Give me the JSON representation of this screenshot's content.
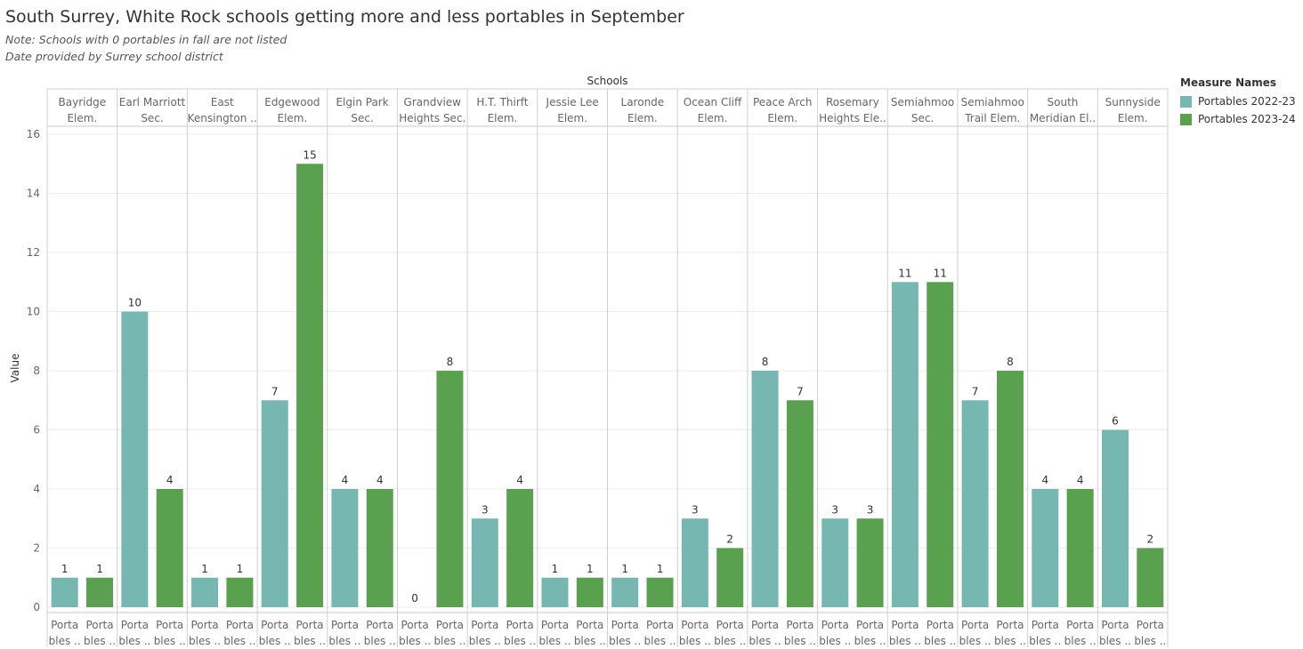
{
  "header": {
    "title": "South Surrey, White Rock schools getting more and less portables in September",
    "notes": [
      "Note: Schools with 0 portables in fall are not listed",
      "Date provided by Surrey school district"
    ]
  },
  "legend": {
    "title": "Measure Names",
    "items": [
      {
        "label": "Portables 2022-23",
        "color": "#76b7b2"
      },
      {
        "label": "Portables 2023-24",
        "color": "#59a14f"
      }
    ]
  },
  "chart_data": {
    "type": "bar",
    "title": "South Surrey, White Rock schools getting more and less portables in September",
    "column_header": "Schools",
    "ylabel": "Value",
    "ylim": [
      0,
      16
    ],
    "yticks": [
      0,
      2,
      4,
      6,
      8,
      10,
      12,
      14,
      16
    ],
    "grid": true,
    "legend_position": "right",
    "sub_category_labels": [
      "Porta",
      "bles .."
    ],
    "categories": [
      [
        "Bayridge",
        "Elem."
      ],
      [
        "Earl Marriott",
        "Sec."
      ],
      [
        "East",
        "Kensington .."
      ],
      [
        "Edgewood",
        "Elem."
      ],
      [
        "Elgin Park",
        "Sec."
      ],
      [
        "Grandview",
        "Heights Sec."
      ],
      [
        "H.T. Thirft",
        "Elem."
      ],
      [
        "Jessie Lee",
        "Elem."
      ],
      [
        "Laronde",
        "Elem."
      ],
      [
        "Ocean Cliff",
        "Elem."
      ],
      [
        "Peace Arch",
        "Elem."
      ],
      [
        "Rosemary",
        "Heights Ele.."
      ],
      [
        "Semiahmoo",
        "Sec."
      ],
      [
        "Semiahmoo",
        "Trail Elem."
      ],
      [
        "South",
        "Meridian El.."
      ],
      [
        "Sunnyside",
        "Elem."
      ]
    ],
    "series": [
      {
        "name": "Portables 2022-23",
        "color": "#76b7b2",
        "values": [
          1,
          10,
          1,
          7,
          4,
          0,
          3,
          1,
          1,
          3,
          8,
          3,
          11,
          7,
          4,
          6
        ]
      },
      {
        "name": "Portables 2023-24",
        "color": "#59a14f",
        "values": [
          1,
          4,
          1,
          15,
          4,
          8,
          4,
          1,
          1,
          2,
          7,
          3,
          11,
          8,
          4,
          2
        ]
      }
    ]
  }
}
